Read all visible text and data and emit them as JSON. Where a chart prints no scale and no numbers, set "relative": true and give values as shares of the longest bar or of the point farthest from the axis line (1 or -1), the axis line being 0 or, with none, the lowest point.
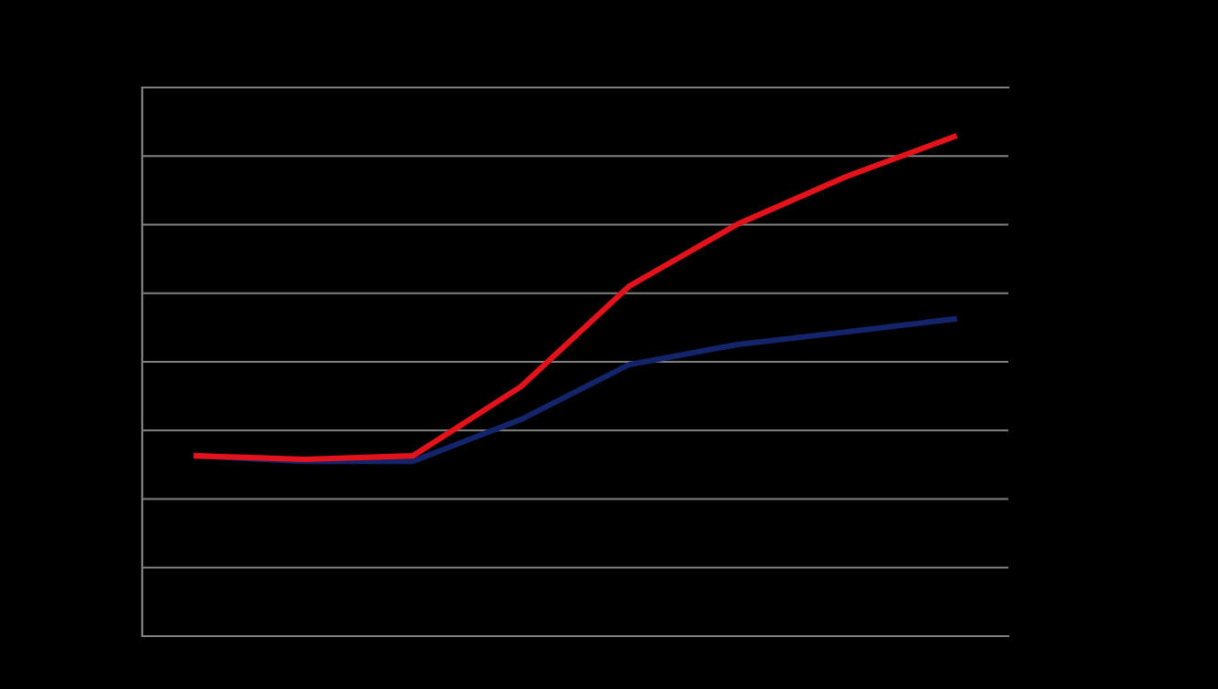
{
  "chart_data": {
    "type": "line",
    "relative": true,
    "categories": [
      null,
      null,
      null,
      null,
      null,
      null,
      null,
      null
    ],
    "series": [
      {
        "color": "#14246a",
        "values": [
          0.361,
          0.35,
          0.35,
          0.434,
          0.544,
          0.584,
          0.609,
          0.635
        ]
      },
      {
        "color": "#e3131b",
        "values": [
          0.361,
          0.354,
          0.361,
          0.5,
          0.701,
          0.825,
          0.92,
          1
        ]
      }
    ],
    "grid": "y",
    "marker": "none",
    "line_style": "solid"
  }
}
